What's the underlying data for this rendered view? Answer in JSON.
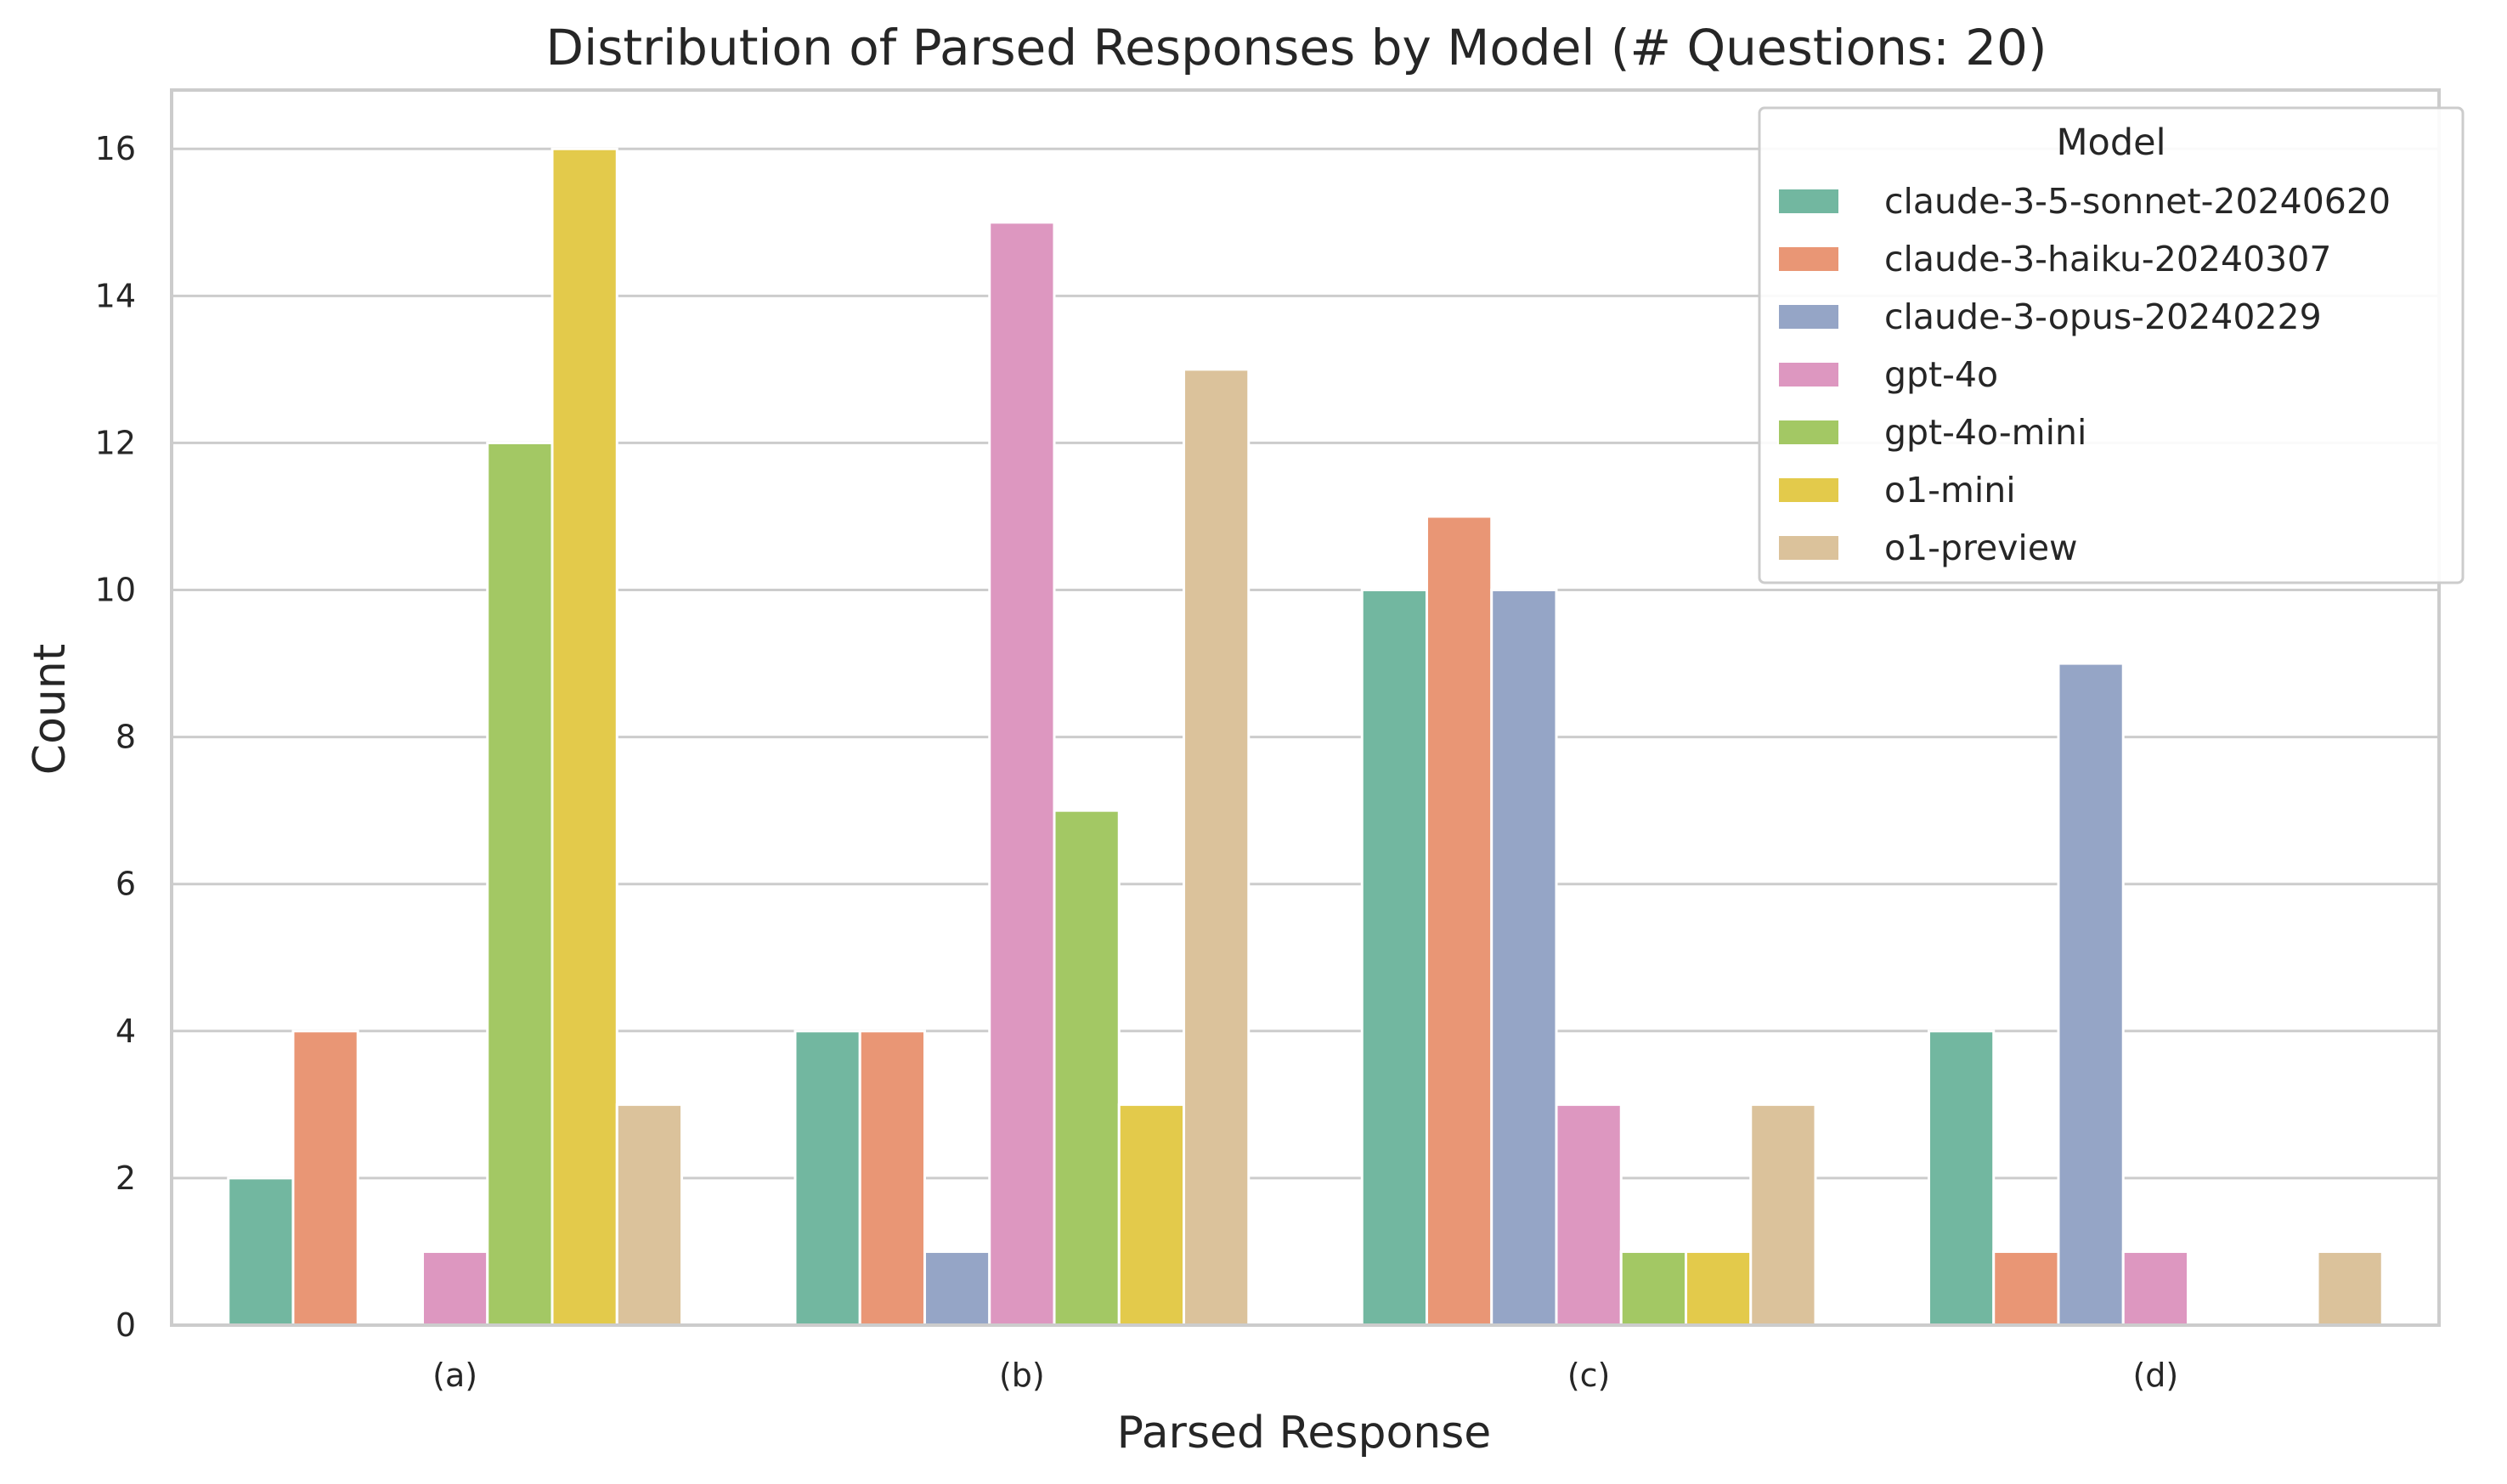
{
  "chart_data": {
    "type": "bar",
    "title": "Distribution of Parsed Responses by Model (# Questions: 20)",
    "xlabel": "Parsed Response",
    "ylabel": "Count",
    "categories": [
      "(a)",
      "(b)",
      "(c)",
      "(d)"
    ],
    "ylim": [
      0,
      16.8
    ],
    "yticks": [
      0,
      2,
      4,
      6,
      8,
      10,
      12,
      14,
      16
    ],
    "grid": true,
    "legend": {
      "title": "Model",
      "placement": "top-right"
    },
    "series": [
      {
        "name": "claude-3-5-sonnet-20240620",
        "color": "#72b7a0",
        "values": [
          2,
          4,
          10,
          4
        ]
      },
      {
        "name": "claude-3-haiku-20240307",
        "color": "#e99675",
        "values": [
          4,
          4,
          11,
          1
        ]
      },
      {
        "name": "claude-3-opus-20240229",
        "color": "#95a5c6",
        "values": [
          0,
          1,
          10,
          9
        ]
      },
      {
        "name": "gpt-4o",
        "color": "#dd97c0",
        "values": [
          1,
          15,
          3,
          1
        ]
      },
      {
        "name": "gpt-4o-mini",
        "color": "#a3c864",
        "values": [
          12,
          7,
          1,
          0
        ]
      },
      {
        "name": "o1-mini",
        "color": "#e3ca4b",
        "values": [
          16,
          3,
          1,
          0
        ]
      },
      {
        "name": "o1-preview",
        "color": "#dbc29b",
        "values": [
          3,
          13,
          3,
          1
        ]
      }
    ]
  }
}
